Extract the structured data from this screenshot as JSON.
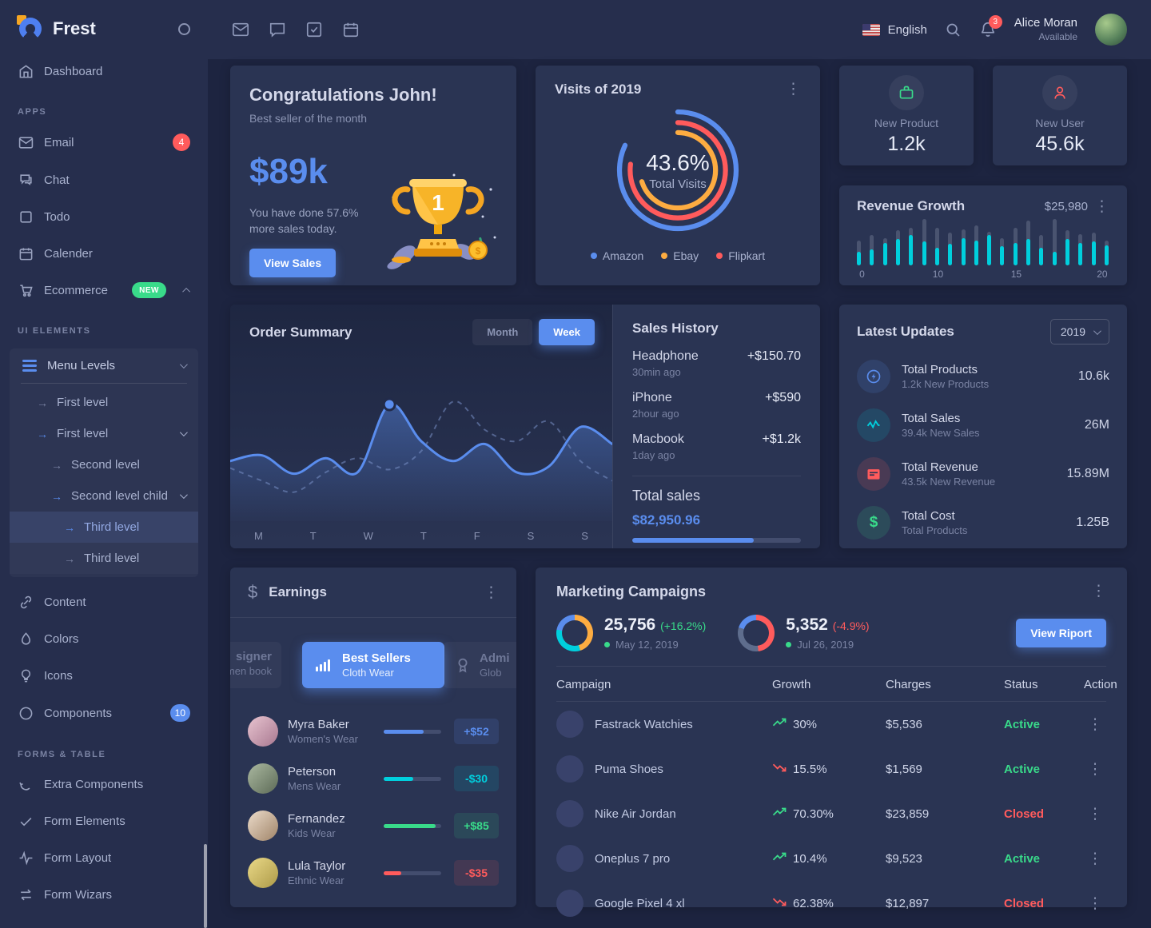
{
  "colors": {
    "primary": "#5a8dee",
    "success": "#39da8a",
    "danger": "#ff5b5c",
    "warning": "#fdac41",
    "info": "#00cfdd"
  },
  "sidebar": {
    "brand": "Frest",
    "dashboard": "Dashboard",
    "apps_label": "APPS",
    "email": "Email",
    "email_badge": "4",
    "chat": "Chat",
    "todo": "Todo",
    "calender": "Calender",
    "ecommerce": "Ecommerce",
    "ecommerce_badge": "NEW",
    "ui_label": "UI ELEMENTS",
    "menu_levels": "Menu Levels",
    "levels": [
      "First level",
      "First level",
      "Second level",
      "Second level child",
      "Third level",
      "Third level"
    ],
    "content": "Content",
    "colors": "Colors",
    "icons": "Icons",
    "components": "Components",
    "components_badge": "10",
    "forms_label": "FORMS & TABLE",
    "extra_components": "Extra Components",
    "form_elements": "Form Elements",
    "form_layout": "Form Layout",
    "form_wizars": "Form Wizars"
  },
  "header": {
    "language": "English",
    "notifications": "3",
    "user_name": "Alice Moran",
    "user_status": "Available"
  },
  "congrats": {
    "title": "Congratulations John!",
    "subtitle": "Best seller of the month",
    "amount": "$89k",
    "note1": "You have done 57.6%",
    "note2": "more sales today.",
    "button": "View Sales",
    "trophy_rank": "1"
  },
  "visits": {
    "title": "Visits of 2019",
    "center_value": "43.6%",
    "center_label": "Total Visits",
    "legend": [
      "Amazon",
      "Ebay",
      "Flipkart"
    ]
  },
  "stats": {
    "new_product_label": "New Product",
    "new_product_value": "1.2k",
    "new_user_label": "New User",
    "new_user_value": "45.6k"
  },
  "revenue": {
    "title": "Revenue Growth",
    "amount": "$25,980"
  },
  "order_summary": {
    "title": "Order Summary",
    "month": "Month",
    "week": "Week",
    "days": [
      "M",
      "T",
      "W",
      "T",
      "F",
      "S",
      "S"
    ]
  },
  "sales_history": {
    "title": "Sales History",
    "items": [
      {
        "name": "Headphone",
        "time": "30min ago",
        "amount": "+$150.70"
      },
      {
        "name": "iPhone",
        "time": "2hour ago",
        "amount": "+$590"
      },
      {
        "name": "Macbook",
        "time": "1day ago",
        "amount": "+$1.2k"
      }
    ],
    "total_label": "Total sales",
    "total_value": "$82,950.96",
    "total_pct": 72
  },
  "latest_updates": {
    "title": "Latest Updates",
    "year": "2019",
    "rows": [
      {
        "title": "Total Products",
        "sub": "1.2k New Products",
        "value": "10.6k"
      },
      {
        "title": "Total Sales",
        "sub": "39.4k New Sales",
        "value": "26M"
      },
      {
        "title": "Total Revenue",
        "sub": "43.5k New Revenue",
        "value": "15.89M"
      },
      {
        "title": "Total Cost",
        "sub": "Total Products",
        "value": "1.25B"
      }
    ]
  },
  "earnings": {
    "title": "Earnings",
    "slide_left_line1": "signer",
    "slide_left_line2": "men book",
    "slide_center_line1": "Best Sellers",
    "slide_center_line2": "Cloth Wear",
    "slide_right_line1": "Admi",
    "slide_right_line2": "Glob",
    "people": [
      {
        "name": "Myra Baker",
        "category": "Women's Wear",
        "amount": "+$52",
        "pct": 70,
        "color": "blue"
      },
      {
        "name": "Peterson",
        "category": "Mens Wear",
        "amount": "-$30",
        "pct": 52,
        "color": "cyan"
      },
      {
        "name": "Fernandez",
        "category": "Kids Wear",
        "amount": "+$85",
        "pct": 90,
        "color": "green"
      },
      {
        "name": "Lula Taylor",
        "category": "Ethnic Wear",
        "amount": "-$35",
        "pct": 30,
        "color": "red"
      }
    ]
  },
  "marketing": {
    "title": "Marketing Campaigns",
    "stat1_value": "25,756",
    "stat1_delta": "(+16.2%)",
    "stat1_date": "May 12, 2019",
    "stat2_value": "5,352",
    "stat2_delta": "(-4.9%)",
    "stat2_date": "Jul 26, 2019",
    "button": "View Riport",
    "headers": [
      "Campaign",
      "Growth",
      "Charges",
      "Status",
      "Action"
    ],
    "rows": [
      {
        "name": "Fastrack Watchies",
        "growth": "30%",
        "direction": "up",
        "charges": "$5,536",
        "status": "Active"
      },
      {
        "name": "Puma Shoes",
        "growth": "15.5%",
        "direction": "down",
        "charges": "$1,569",
        "status": "Active"
      },
      {
        "name": "Nike Air Jordan",
        "growth": "70.30%",
        "direction": "up",
        "charges": "$23,859",
        "status": "Closed"
      },
      {
        "name": "Oneplus 7 pro",
        "growth": "10.4%",
        "direction": "up",
        "charges": "$9,523",
        "status": "Active"
      },
      {
        "name": "Google Pixel 4 xl",
        "growth": "62.38%",
        "direction": "down",
        "charges": "$12,897",
        "status": "Closed"
      }
    ]
  },
  "chart_data": [
    {
      "id": "visits-gauge",
      "type": "radialBar",
      "title": "Visits of 2019",
      "center_value": "43.6%",
      "center_label": "Total Visits",
      "series": [
        {
          "name": "Amazon",
          "color": "#5a8dee",
          "sweep_pct": 82
        },
        {
          "name": "Flipkart",
          "color": "#ff5b5c",
          "sweep_pct": 77
        },
        {
          "name": "Ebay",
          "color": "#fdac41",
          "sweep_pct": 70
        }
      ],
      "legend_position": "bottom"
    },
    {
      "id": "revenue-growth",
      "type": "bar",
      "title": "Revenue Growth",
      "amount": "$25,980",
      "x_ticks": [
        "0",
        "10",
        "15",
        "20"
      ],
      "tick_pos_pct": [
        1,
        30,
        61,
        95
      ],
      "series": [
        {
          "name": "background",
          "color": "#4a5470",
          "values": [
            54,
            65,
            59,
            76,
            81,
            100,
            81,
            70,
            78,
            86,
            73,
            59,
            81,
            97,
            65,
            100,
            76,
            68,
            70,
            54
          ]
        },
        {
          "name": "growth",
          "color": "#00cfdd",
          "values": [
            30,
            35,
            49,
            57,
            65,
            51,
            38,
            46,
            59,
            54,
            65,
            41,
            49,
            57,
            38,
            30,
            57,
            49,
            51,
            43
          ]
        }
      ]
    },
    {
      "id": "order-summary",
      "type": "line",
      "categories": [
        "M",
        "T",
        "W",
        "T",
        "F",
        "S",
        "S"
      ],
      "ylim": [
        0,
        100
      ],
      "grid": false,
      "series": [
        {
          "name": "this-week",
          "style": "solid",
          "color": "#5a8dee",
          "marker_index": 5,
          "values": [
            38,
            42,
            29,
            40,
            30,
            78,
            52,
            38,
            50,
            30,
            34,
            62,
            50
          ]
        },
        {
          "name": "previous-week",
          "style": "dashed",
          "color": "#7a92c8",
          "values": [
            33,
            24,
            16,
            30,
            40,
            32,
            45,
            80,
            60,
            52,
            66,
            38,
            24
          ]
        }
      ]
    },
    {
      "id": "campaign-donut-1",
      "type": "pie",
      "value": "25,756",
      "delta": "+16.2%",
      "date": "May 12, 2019",
      "slices": [
        {
          "color": "#fdac41",
          "pct": 45
        },
        {
          "color": "#00cfdd",
          "pct": 33
        },
        {
          "color": "#5a8dee",
          "pct": 22
        }
      ]
    },
    {
      "id": "campaign-donut-2",
      "type": "pie",
      "value": "5,352",
      "delta": "-4.9%",
      "date": "Jul 26, 2019",
      "slices": [
        {
          "color": "#ff5b5c",
          "pct": 48
        },
        {
          "color": "#5e6d8d",
          "pct": 32
        },
        {
          "color": "#5a8dee",
          "pct": 20
        }
      ]
    }
  ]
}
